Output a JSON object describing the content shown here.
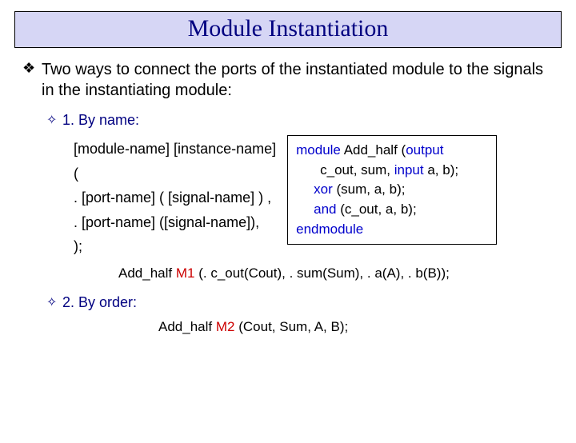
{
  "title": "Module Instantiation",
  "main_bullet": "Two ways to connect the ports of the instantiated module to the signals in the instantiating module:",
  "sub1": "1. By name:",
  "sub2": "2. By order:",
  "syntax": {
    "l1": "[module-name] [instance-name]",
    "l2": "(",
    "l3": ". [port-name] ( [signal-name] ) ,",
    "l4": ". [port-name] ([signal-name]),",
    "l5": ");"
  },
  "code": {
    "module_kw": "module",
    "mod_name": "Add_half",
    "paren_open": "(",
    "output_kw": "output",
    "outputs": "c_out, sum,",
    "input_kw": "input",
    "inputs": "a, b);",
    "xor_kw": "xor",
    "xor_args": "(sum, a, b);",
    "and_kw": "and",
    "and_args": "(c_out, a, b);",
    "endmodule_kw": "endmodule"
  },
  "inst1": {
    "mod": "Add_half",
    "inst": "M1",
    "args": "(. c_out(Cout), . sum(Sum),  . a(A), . b(B));"
  },
  "inst2": {
    "mod": "Add_half",
    "inst": "M2",
    "args": "(Cout, Sum,  A, B);"
  },
  "colors": {
    "title_bg": "#d6d6f5",
    "title_fg": "#000080",
    "kw_blue": "#0000cc",
    "kw_red": "#cc0000",
    "text": "#000000"
  }
}
